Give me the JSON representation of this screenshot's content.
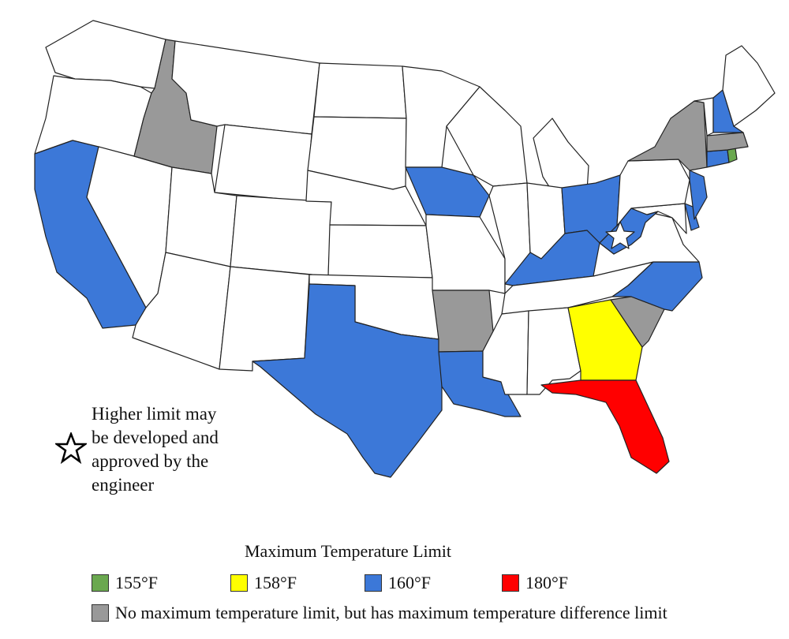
{
  "note": {
    "lines": [
      "Higher limit may",
      "be developed and",
      "approved by the",
      "engineer"
    ]
  },
  "legend": {
    "title": "Maximum Temperature Limit",
    "items": [
      {
        "label": "155°F",
        "color": "#6aa84f"
      },
      {
        "label": "158°F",
        "color": "#ffff00"
      },
      {
        "label": "160°F",
        "color": "#3c78d8"
      },
      {
        "label": "180°F",
        "color": "#ff0000"
      }
    ],
    "gray_item": {
      "label": "No maximum temperature limit, but has maximum temperature difference limit",
      "color": "#999999"
    }
  },
  "colors": {
    "none": "#ffffff",
    "gray": "#999999",
    "green": "#6aa84f",
    "yellow": "#ffff00",
    "blue": "#3c78d8",
    "red": "#ff0000",
    "border": "#222222"
  },
  "states": [
    {
      "id": "WA",
      "category": "none"
    },
    {
      "id": "OR",
      "category": "none"
    },
    {
      "id": "CA",
      "category": "blue"
    },
    {
      "id": "NV",
      "category": "none"
    },
    {
      "id": "ID",
      "category": "gray"
    },
    {
      "id": "MT",
      "category": "none"
    },
    {
      "id": "WY",
      "category": "none"
    },
    {
      "id": "UT",
      "category": "none"
    },
    {
      "id": "AZ",
      "category": "none"
    },
    {
      "id": "CO",
      "category": "none"
    },
    {
      "id": "NM",
      "category": "none"
    },
    {
      "id": "ND",
      "category": "none"
    },
    {
      "id": "SD",
      "category": "none"
    },
    {
      "id": "NE",
      "category": "none"
    },
    {
      "id": "KS",
      "category": "none"
    },
    {
      "id": "OK",
      "category": "none"
    },
    {
      "id": "TX",
      "category": "blue"
    },
    {
      "id": "MN",
      "category": "none"
    },
    {
      "id": "IA",
      "category": "blue"
    },
    {
      "id": "MO",
      "category": "none"
    },
    {
      "id": "AR",
      "category": "gray"
    },
    {
      "id": "LA",
      "category": "blue"
    },
    {
      "id": "WI",
      "category": "none"
    },
    {
      "id": "IL",
      "category": "none"
    },
    {
      "id": "MI",
      "category": "none"
    },
    {
      "id": "IN",
      "category": "none"
    },
    {
      "id": "OH",
      "category": "blue"
    },
    {
      "id": "KY",
      "category": "blue"
    },
    {
      "id": "TN",
      "category": "none"
    },
    {
      "id": "MS",
      "category": "none"
    },
    {
      "id": "AL",
      "category": "none"
    },
    {
      "id": "GA",
      "category": "yellow"
    },
    {
      "id": "FL",
      "category": "red"
    },
    {
      "id": "SC",
      "category": "gray"
    },
    {
      "id": "NC",
      "category": "blue"
    },
    {
      "id": "VA",
      "category": "none"
    },
    {
      "id": "WV",
      "category": "blue"
    },
    {
      "id": "MD",
      "category": "none"
    },
    {
      "id": "DE",
      "category": "blue"
    },
    {
      "id": "PA",
      "category": "none"
    },
    {
      "id": "NJ",
      "category": "blue"
    },
    {
      "id": "NY",
      "category": "gray"
    },
    {
      "id": "CT",
      "category": "blue"
    },
    {
      "id": "RI",
      "category": "green"
    },
    {
      "id": "MA",
      "category": "gray"
    },
    {
      "id": "VT",
      "category": "none"
    },
    {
      "id": "NH",
      "category": "blue"
    },
    {
      "id": "ME",
      "category": "none"
    }
  ],
  "star_state": "WV"
}
